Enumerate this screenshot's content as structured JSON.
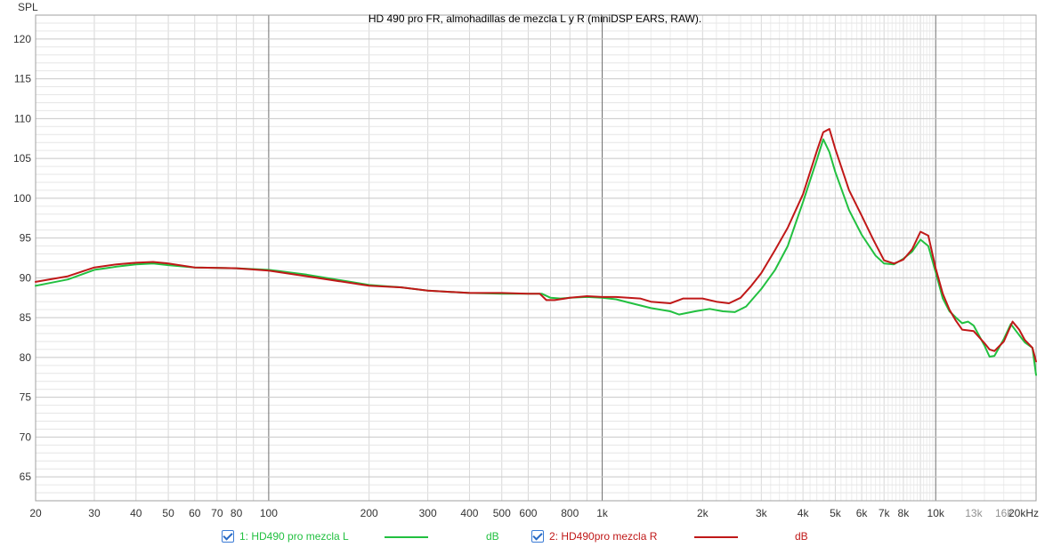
{
  "chart_data": {
    "type": "line",
    "title": "HD 490 pro FR, almohadillas de mezcla L y R (miniDSP EARS, RAW).",
    "ylabel": "SPL",
    "xscale": "log",
    "xlim": [
      20,
      20000
    ],
    "ylim": [
      62,
      123
    ],
    "grid": true,
    "x_ticks": [
      {
        "v": 20,
        "label": "20"
      },
      {
        "v": 30,
        "label": "30"
      },
      {
        "v": 40,
        "label": "40"
      },
      {
        "v": 50,
        "label": "50"
      },
      {
        "v": 60,
        "label": "60"
      },
      {
        "v": 70,
        "label": "70"
      },
      {
        "v": 80,
        "label": "80"
      },
      {
        "v": 100,
        "label": "100"
      },
      {
        "v": 200,
        "label": "200"
      },
      {
        "v": 300,
        "label": "300"
      },
      {
        "v": 400,
        "label": "400"
      },
      {
        "v": 500,
        "label": "500"
      },
      {
        "v": 600,
        "label": "600"
      },
      {
        "v": 800,
        "label": "800"
      },
      {
        "v": 1000,
        "label": "1k"
      },
      {
        "v": 2000,
        "label": "2k"
      },
      {
        "v": 3000,
        "label": "3k"
      },
      {
        "v": 4000,
        "label": "4k"
      },
      {
        "v": 5000,
        "label": "5k"
      },
      {
        "v": 6000,
        "label": "6k"
      },
      {
        "v": 7000,
        "label": "7k"
      },
      {
        "v": 8000,
        "label": "8k"
      },
      {
        "v": 10000,
        "label": "10k"
      },
      {
        "v": 13000,
        "label": "13k"
      },
      {
        "v": 16000,
        "label": "16k"
      },
      {
        "v": 20000,
        "label": "20kHz"
      }
    ],
    "y_ticks": [
      65,
      70,
      75,
      80,
      85,
      90,
      95,
      100,
      105,
      110,
      115,
      120
    ],
    "series": [
      {
        "name": "1: HD490 pro mezcla L",
        "unit": "dB",
        "color": "#22c040",
        "points": [
          [
            20,
            89.0
          ],
          [
            25,
            89.8
          ],
          [
            30,
            91.0
          ],
          [
            35,
            91.4
          ],
          [
            40,
            91.7
          ],
          [
            45,
            91.8
          ],
          [
            50,
            91.6
          ],
          [
            60,
            91.3
          ],
          [
            80,
            91.2
          ],
          [
            100,
            91.0
          ],
          [
            130,
            90.4
          ],
          [
            200,
            89.1
          ],
          [
            250,
            88.8
          ],
          [
            300,
            88.4
          ],
          [
            400,
            88.1
          ],
          [
            500,
            88.0
          ],
          [
            600,
            88.0
          ],
          [
            660,
            88.0
          ],
          [
            700,
            87.5
          ],
          [
            750,
            87.4
          ],
          [
            800,
            87.5
          ],
          [
            900,
            87.6
          ],
          [
            1000,
            87.5
          ],
          [
            1100,
            87.3
          ],
          [
            1200,
            86.9
          ],
          [
            1400,
            86.2
          ],
          [
            1600,
            85.8
          ],
          [
            1700,
            85.4
          ],
          [
            1900,
            85.8
          ],
          [
            2100,
            86.1
          ],
          [
            2300,
            85.8
          ],
          [
            2500,
            85.7
          ],
          [
            2700,
            86.4
          ],
          [
            3000,
            88.6
          ],
          [
            3300,
            91.0
          ],
          [
            3600,
            94.0
          ],
          [
            4000,
            99.5
          ],
          [
            4400,
            104.8
          ],
          [
            4600,
            107.4
          ],
          [
            4800,
            105.8
          ],
          [
            5000,
            103.3
          ],
          [
            5500,
            98.5
          ],
          [
            6000,
            95.4
          ],
          [
            6600,
            92.8
          ],
          [
            7000,
            91.8
          ],
          [
            7500,
            91.7
          ],
          [
            8000,
            92.4
          ],
          [
            8500,
            93.3
          ],
          [
            9000,
            94.8
          ],
          [
            9500,
            94.0
          ],
          [
            10000,
            90.7
          ],
          [
            10500,
            87.4
          ],
          [
            11000,
            85.8
          ],
          [
            11500,
            85.0
          ],
          [
            12000,
            84.3
          ],
          [
            12500,
            84.5
          ],
          [
            13000,
            84.0
          ],
          [
            14000,
            81.5
          ],
          [
            14500,
            80.1
          ],
          [
            15000,
            80.2
          ],
          [
            16000,
            82.3
          ],
          [
            16800,
            84.2
          ],
          [
            17500,
            83.2
          ],
          [
            18500,
            81.9
          ],
          [
            19500,
            81.2
          ],
          [
            20000,
            77.8
          ]
        ]
      },
      {
        "name": "2: HD490pro mezcla R",
        "unit": "dB",
        "color": "#c01818",
        "points": [
          [
            20,
            89.5
          ],
          [
            25,
            90.2
          ],
          [
            30,
            91.3
          ],
          [
            35,
            91.7
          ],
          [
            40,
            91.9
          ],
          [
            45,
            92.0
          ],
          [
            50,
            91.8
          ],
          [
            60,
            91.3
          ],
          [
            80,
            91.2
          ],
          [
            100,
            90.9
          ],
          [
            130,
            90.2
          ],
          [
            200,
            89.0
          ],
          [
            250,
            88.8
          ],
          [
            300,
            88.4
          ],
          [
            400,
            88.1
          ],
          [
            500,
            88.1
          ],
          [
            600,
            88.0
          ],
          [
            650,
            88.0
          ],
          [
            680,
            87.2
          ],
          [
            720,
            87.2
          ],
          [
            800,
            87.5
          ],
          [
            900,
            87.7
          ],
          [
            1000,
            87.6
          ],
          [
            1100,
            87.6
          ],
          [
            1300,
            87.4
          ],
          [
            1400,
            87.0
          ],
          [
            1600,
            86.8
          ],
          [
            1750,
            87.4
          ],
          [
            2000,
            87.4
          ],
          [
            2200,
            87.0
          ],
          [
            2400,
            86.8
          ],
          [
            2600,
            87.5
          ],
          [
            2800,
            89.0
          ],
          [
            3000,
            90.6
          ],
          [
            3300,
            93.5
          ],
          [
            3600,
            96.3
          ],
          [
            4000,
            100.5
          ],
          [
            4400,
            105.9
          ],
          [
            4600,
            108.3
          ],
          [
            4800,
            108.7
          ],
          [
            5000,
            106.2
          ],
          [
            5500,
            101.0
          ],
          [
            6000,
            97.8
          ],
          [
            6500,
            94.8
          ],
          [
            7000,
            92.2
          ],
          [
            7500,
            91.8
          ],
          [
            8000,
            92.3
          ],
          [
            8500,
            93.6
          ],
          [
            9000,
            95.8
          ],
          [
            9500,
            95.3
          ],
          [
            10000,
            91.2
          ],
          [
            10500,
            88.0
          ],
          [
            11000,
            86.0
          ],
          [
            11500,
            84.6
          ],
          [
            12000,
            83.5
          ],
          [
            13000,
            83.3
          ],
          [
            14000,
            81.8
          ],
          [
            14500,
            81.0
          ],
          [
            15000,
            80.8
          ],
          [
            16000,
            82.0
          ],
          [
            17000,
            84.5
          ],
          [
            17800,
            83.5
          ],
          [
            18500,
            82.2
          ],
          [
            19500,
            81.2
          ],
          [
            20000,
            79.5
          ]
        ]
      }
    ]
  },
  "legend": {
    "items": [
      {
        "label": "1: HD490 pro mezcla L",
        "unit": "dB",
        "color": "#22c040",
        "checked": true
      },
      {
        "label": "2: HD490pro mezcla R",
        "unit": "dB",
        "color": "#c01818",
        "checked": true
      }
    ]
  }
}
